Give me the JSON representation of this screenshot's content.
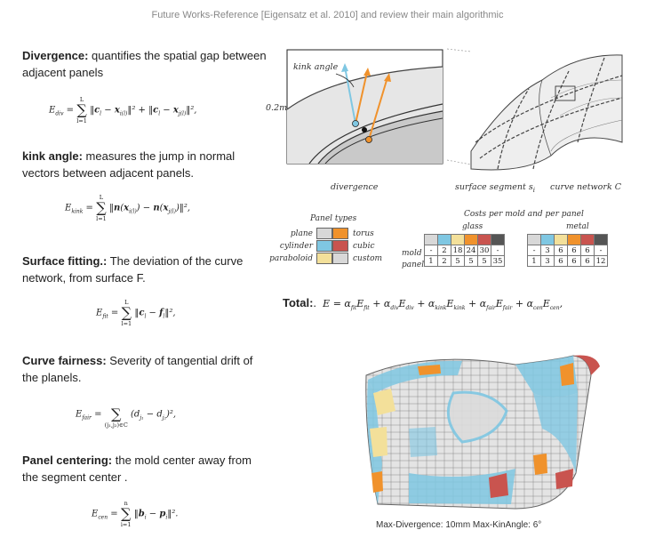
{
  "header": {
    "title": "Future Works-Reference  [Eigensatz et al. 2010] and review their main algorithmic"
  },
  "terms": [
    {
      "name": "Divergence:",
      "desc": " quantifies the spatial gap between adjacent panels"
    },
    {
      "name": "kink angle:",
      "desc": " measures the jump in normal vectors between adjacent panels."
    },
    {
      "name": "Surface fitting.:",
      "desc": " The deviation of the curve network, from surface F."
    },
    {
      "name": "Curve fairness:",
      "desc": " Severity of tangential drift of the planels."
    },
    {
      "name": "Panel centering:",
      "desc": " the mold center away from the segment center ."
    }
  ],
  "equations": {
    "div_lhs": "E",
    "div_sub": "div",
    "div_body": "‖c",
    "kink_lhs": "E",
    "kink_sub": "kink",
    "fit_lhs": "E",
    "fit_sub": "fit",
    "fair_lhs": "E",
    "fair_sub": "fair",
    "cen_lhs": "E",
    "cen_sub": "cen",
    "sum_top_L": "L",
    "sum_bottom_l": "l=1",
    "sum_top_n": "n",
    "sum_bottom_i": "i=1",
    "sum_bottom_pair": "(j₁,j₂)∈C"
  },
  "figure": {
    "kink_angle_label": "kink angle",
    "scale_label": "0.2m",
    "divergence_label": "divergence",
    "surface_segment_label": "surface segment s",
    "surface_segment_sub": "i",
    "curve_network_label": "curve network C"
  },
  "panel_types": {
    "title": "Panel types",
    "left": [
      "plane",
      "cylinder",
      "paraboloid"
    ],
    "right": [
      "torus",
      "cubic",
      "custom"
    ],
    "colors_left": [
      "#d8d8d8",
      "#7fc7e2",
      "#f3e09a"
    ],
    "colors_right": [
      "#f0922c",
      "#c9544f",
      "#d8d8d8"
    ]
  },
  "costs": {
    "title": "Costs per mold and per panel",
    "glass_label": "glass",
    "metal_label": "metal",
    "row_labels": [
      "mold",
      "panel"
    ],
    "glass_mold": [
      "-",
      "2",
      "18",
      "24",
      "30",
      "-"
    ],
    "glass_panel": [
      "1",
      "2",
      "5",
      "5",
      "5",
      "35"
    ],
    "metal_mold": [
      "-",
      "3",
      "6",
      "6",
      "6",
      "-"
    ],
    "metal_panel": [
      "1",
      "3",
      "6",
      "6",
      "6",
      "12"
    ],
    "colors": [
      "#d8d8d8",
      "#7fc7e2",
      "#f3e09a",
      "#f0922c",
      "#c9544f",
      "#555555"
    ]
  },
  "total": {
    "label": "Total:",
    "suffix": "."
  },
  "result_caption": "Max-Divergence: 10mm Max-KinAngle: 6°"
}
